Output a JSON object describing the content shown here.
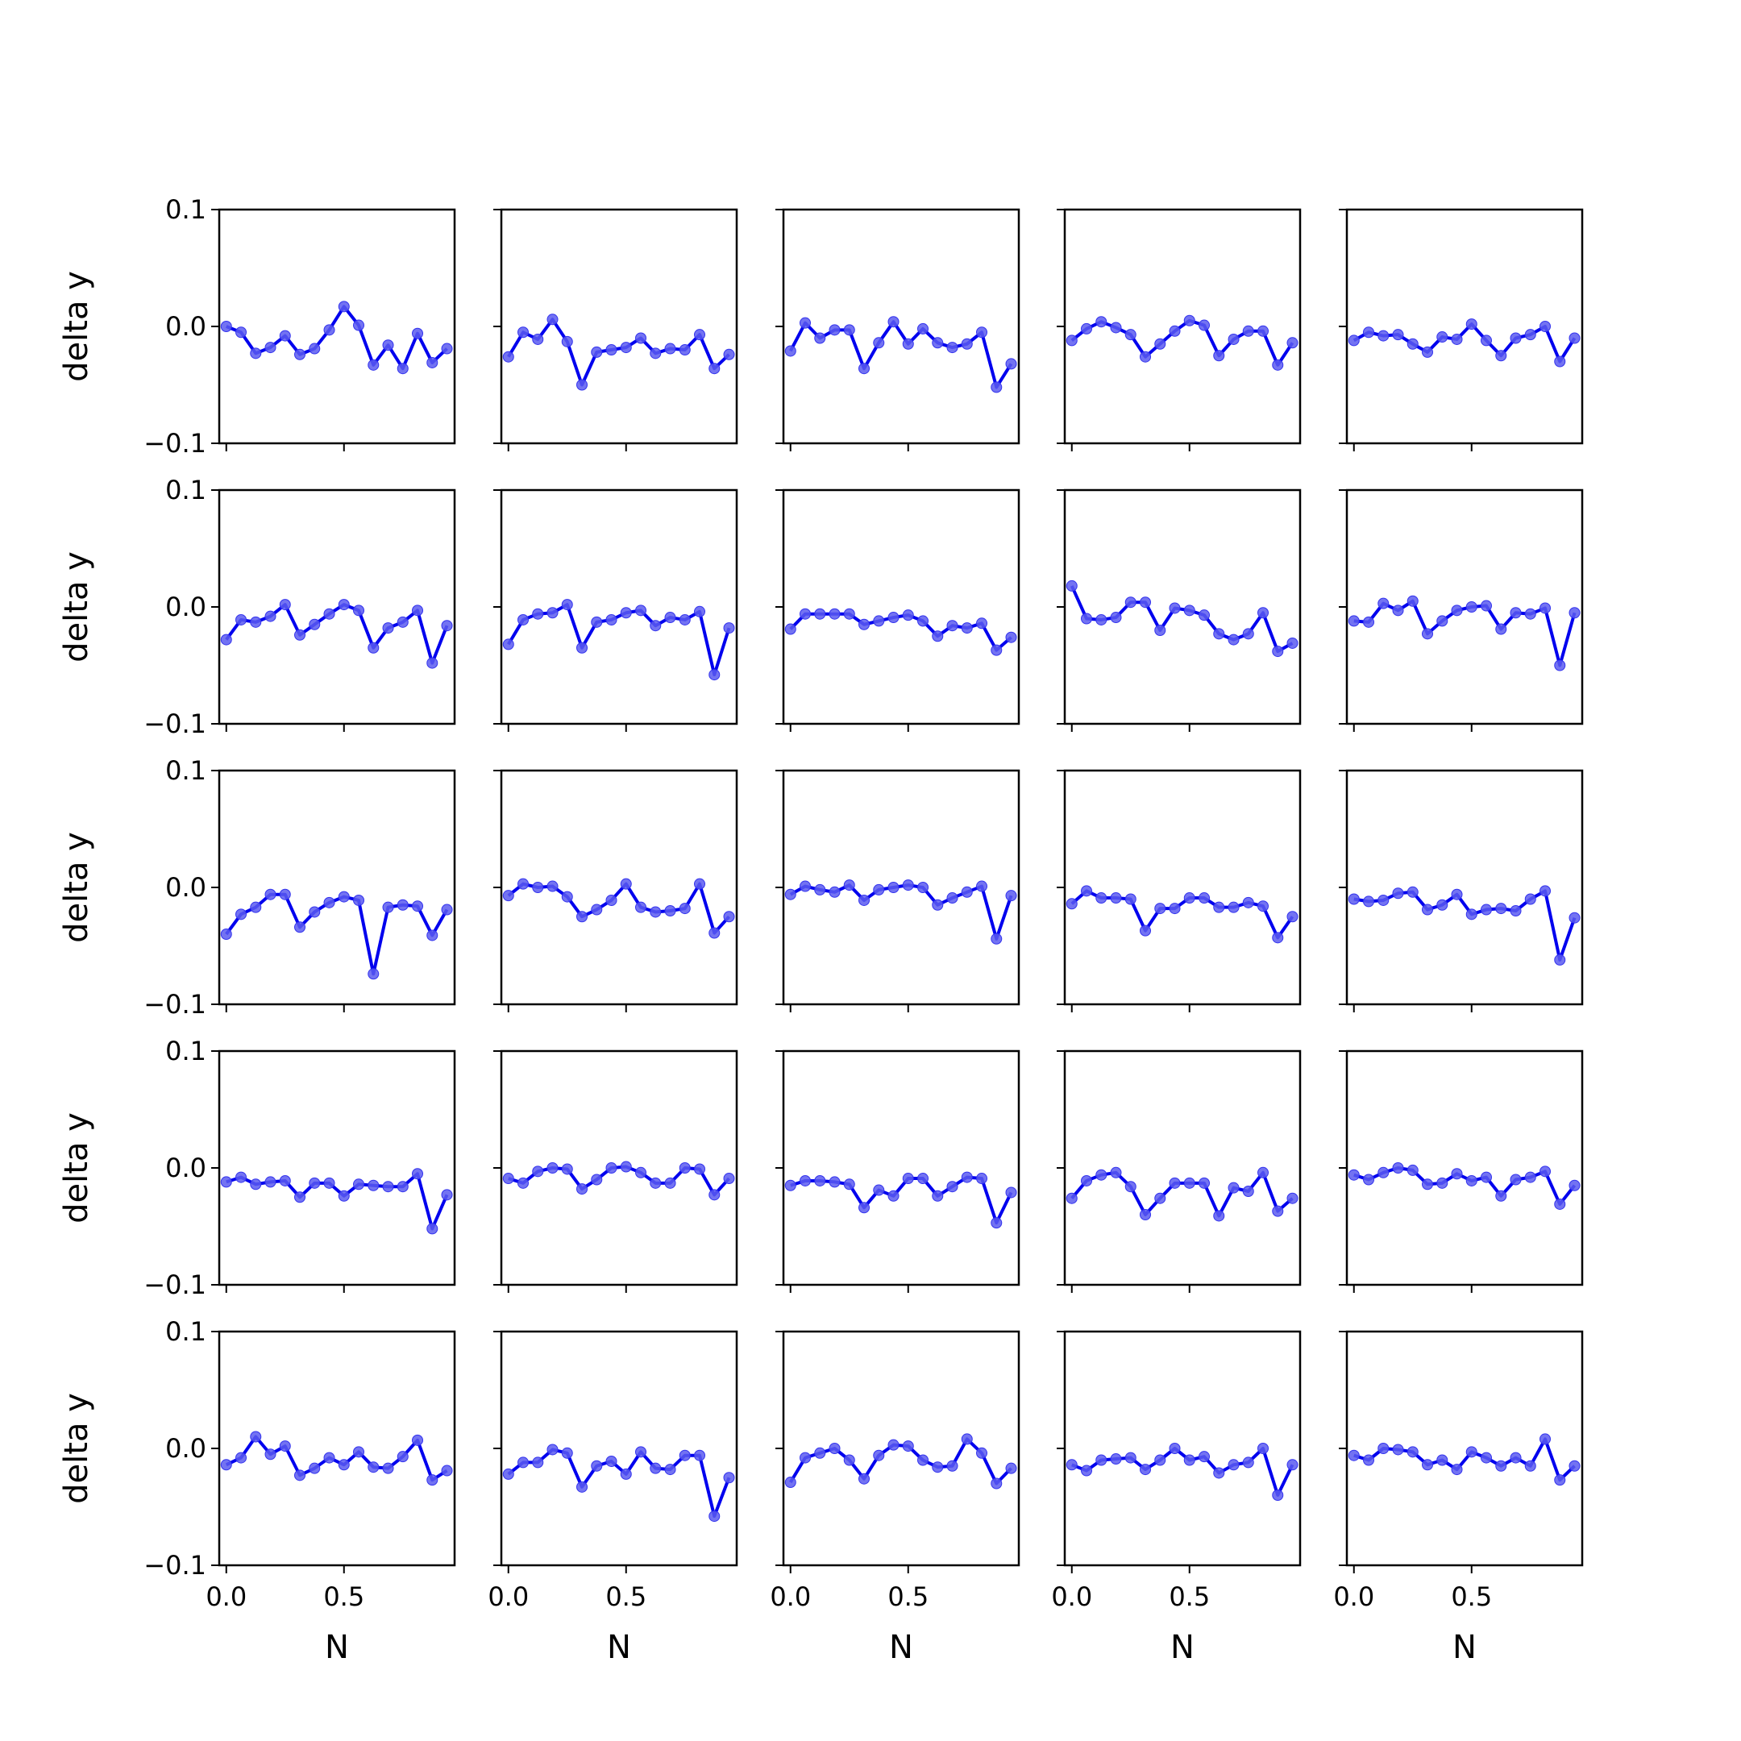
{
  "chart_data": {
    "type": "line",
    "layout": "grid of small multiples",
    "rows": 5,
    "cols": 5,
    "xlabel": "N",
    "ylabel": "delta y",
    "xlim": [
      -0.03,
      0.97
    ],
    "ylim": [
      -0.1,
      0.1
    ],
    "xticks": [
      0.0,
      0.5
    ],
    "xtick_labels": [
      "0.0",
      "0.5"
    ],
    "yticks": [
      -0.1,
      0.0,
      0.1
    ],
    "ytick_labels": [
      "−0.1",
      "0.0",
      "0.1"
    ],
    "grid": false,
    "line_color": "#0000ee",
    "marker_color": "#5a5af0",
    "x": [
      0.0,
      0.0625,
      0.125,
      0.1875,
      0.25,
      0.3125,
      0.375,
      0.4375,
      0.5,
      0.5625,
      0.625,
      0.6875,
      0.75,
      0.8125,
      0.875,
      0.9375
    ],
    "panels": [
      {
        "values": [
          0.0,
          -0.005,
          -0.023,
          -0.018,
          -0.008,
          -0.024,
          -0.019,
          -0.003,
          0.017,
          0.001,
          -0.033,
          -0.016,
          -0.036,
          -0.006,
          -0.031,
          -0.019
        ]
      },
      {
        "values": [
          -0.026,
          -0.005,
          -0.011,
          0.006,
          -0.013,
          -0.05,
          -0.022,
          -0.02,
          -0.018,
          -0.01,
          -0.023,
          -0.019,
          -0.02,
          -0.007,
          -0.036,
          -0.024
        ]
      },
      {
        "values": [
          -0.021,
          0.003,
          -0.01,
          -0.003,
          -0.003,
          -0.036,
          -0.014,
          0.004,
          -0.015,
          -0.002,
          -0.014,
          -0.018,
          -0.015,
          -0.005,
          -0.052,
          -0.032
        ]
      },
      {
        "values": [
          -0.012,
          -0.002,
          0.004,
          -0.001,
          -0.007,
          -0.026,
          -0.015,
          -0.004,
          0.005,
          0.001,
          -0.025,
          -0.011,
          -0.004,
          -0.004,
          -0.033,
          -0.014
        ]
      },
      {
        "values": [
          -0.012,
          -0.005,
          -0.008,
          -0.007,
          -0.015,
          -0.022,
          -0.009,
          -0.011,
          0.002,
          -0.012,
          -0.025,
          -0.01,
          -0.007,
          0.0,
          -0.03,
          -0.01
        ]
      },
      {
        "values": [
          -0.028,
          -0.011,
          -0.013,
          -0.008,
          0.002,
          -0.024,
          -0.015,
          -0.006,
          0.002,
          -0.003,
          -0.035,
          -0.018,
          -0.013,
          -0.003,
          -0.048,
          -0.016
        ]
      },
      {
        "values": [
          -0.032,
          -0.011,
          -0.006,
          -0.005,
          0.002,
          -0.035,
          -0.013,
          -0.011,
          -0.005,
          -0.003,
          -0.016,
          -0.009,
          -0.011,
          -0.004,
          -0.058,
          -0.018
        ]
      },
      {
        "values": [
          -0.019,
          -0.006,
          -0.006,
          -0.006,
          -0.006,
          -0.015,
          -0.012,
          -0.009,
          -0.007,
          -0.012,
          -0.025,
          -0.016,
          -0.018,
          -0.014,
          -0.037,
          -0.026
        ]
      },
      {
        "values": [
          0.018,
          -0.01,
          -0.011,
          -0.009,
          0.004,
          0.004,
          -0.02,
          -0.001,
          -0.003,
          -0.007,
          -0.023,
          -0.028,
          -0.023,
          -0.005,
          -0.038,
          -0.031
        ]
      },
      {
        "values": [
          -0.012,
          -0.013,
          0.003,
          -0.003,
          0.005,
          -0.023,
          -0.012,
          -0.003,
          0.0,
          0.001,
          -0.019,
          -0.005,
          -0.006,
          -0.001,
          -0.05,
          -0.005
        ]
      },
      {
        "values": [
          -0.04,
          -0.023,
          -0.017,
          -0.006,
          -0.006,
          -0.034,
          -0.021,
          -0.013,
          -0.008,
          -0.011,
          -0.074,
          -0.017,
          -0.015,
          -0.016,
          -0.041,
          -0.019
        ]
      },
      {
        "values": [
          -0.007,
          0.003,
          0.0,
          0.001,
          -0.008,
          -0.025,
          -0.019,
          -0.011,
          0.003,
          -0.017,
          -0.021,
          -0.02,
          -0.018,
          0.003,
          -0.039,
          -0.025
        ]
      },
      {
        "values": [
          -0.006,
          0.001,
          -0.002,
          -0.004,
          0.002,
          -0.011,
          -0.002,
          0.0,
          0.002,
          0.0,
          -0.015,
          -0.009,
          -0.004,
          0.001,
          -0.044,
          -0.007
        ]
      },
      {
        "values": [
          -0.014,
          -0.003,
          -0.009,
          -0.009,
          -0.01,
          -0.037,
          -0.018,
          -0.018,
          -0.009,
          -0.009,
          -0.017,
          -0.017,
          -0.013,
          -0.016,
          -0.043,
          -0.025
        ]
      },
      {
        "values": [
          -0.01,
          -0.012,
          -0.011,
          -0.005,
          -0.004,
          -0.019,
          -0.015,
          -0.006,
          -0.023,
          -0.019,
          -0.018,
          -0.02,
          -0.01,
          -0.003,
          -0.062,
          -0.026
        ]
      },
      {
        "values": [
          -0.012,
          -0.008,
          -0.014,
          -0.012,
          -0.011,
          -0.025,
          -0.013,
          -0.013,
          -0.024,
          -0.014,
          -0.015,
          -0.016,
          -0.016,
          -0.005,
          -0.052,
          -0.023
        ]
      },
      {
        "values": [
          -0.009,
          -0.013,
          -0.003,
          0.0,
          -0.001,
          -0.018,
          -0.01,
          0.0,
          0.001,
          -0.004,
          -0.013,
          -0.013,
          0.0,
          -0.001,
          -0.023,
          -0.009
        ]
      },
      {
        "values": [
          -0.015,
          -0.011,
          -0.011,
          -0.012,
          -0.014,
          -0.034,
          -0.019,
          -0.024,
          -0.009,
          -0.009,
          -0.024,
          -0.016,
          -0.008,
          -0.009,
          -0.047,
          -0.021
        ]
      },
      {
        "values": [
          -0.026,
          -0.011,
          -0.006,
          -0.004,
          -0.016,
          -0.04,
          -0.026,
          -0.013,
          -0.013,
          -0.013,
          -0.041,
          -0.017,
          -0.02,
          -0.004,
          -0.037,
          -0.026
        ]
      },
      {
        "values": [
          -0.006,
          -0.01,
          -0.004,
          0.0,
          -0.002,
          -0.014,
          -0.013,
          -0.005,
          -0.011,
          -0.008,
          -0.024,
          -0.01,
          -0.008,
          -0.003,
          -0.031,
          -0.015
        ]
      },
      {
        "values": [
          -0.014,
          -0.008,
          0.01,
          -0.005,
          0.002,
          -0.023,
          -0.017,
          -0.008,
          -0.014,
          -0.003,
          -0.016,
          -0.017,
          -0.007,
          0.007,
          -0.027,
          -0.019
        ]
      },
      {
        "values": [
          -0.022,
          -0.012,
          -0.012,
          -0.001,
          -0.004,
          -0.033,
          -0.015,
          -0.011,
          -0.022,
          -0.003,
          -0.017,
          -0.018,
          -0.006,
          -0.006,
          -0.058,
          -0.025
        ]
      },
      {
        "values": [
          -0.029,
          -0.008,
          -0.004,
          0.0,
          -0.01,
          -0.026,
          -0.006,
          0.003,
          0.002,
          -0.01,
          -0.016,
          -0.015,
          0.008,
          -0.004,
          -0.03,
          -0.017
        ]
      },
      {
        "values": [
          -0.014,
          -0.019,
          -0.01,
          -0.009,
          -0.008,
          -0.018,
          -0.01,
          0.0,
          -0.01,
          -0.007,
          -0.021,
          -0.014,
          -0.012,
          0.0,
          -0.04,
          -0.014
        ]
      },
      {
        "values": [
          -0.006,
          -0.01,
          0.0,
          -0.001,
          -0.003,
          -0.014,
          -0.01,
          -0.018,
          -0.003,
          -0.008,
          -0.015,
          -0.008,
          -0.015,
          0.008,
          -0.027,
          -0.015
        ]
      }
    ]
  }
}
